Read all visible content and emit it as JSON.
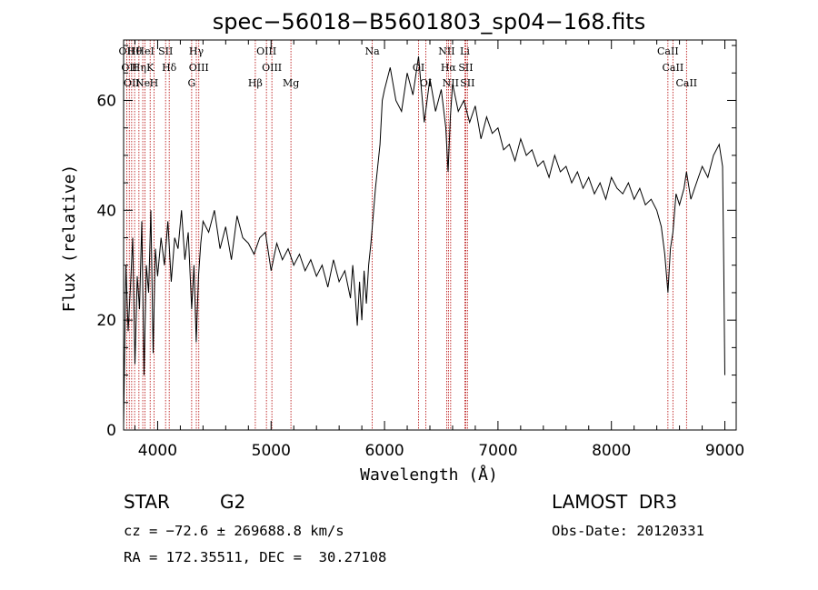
{
  "chart_data": {
    "type": "line",
    "title": "spec−56018−B5601803_sp04−168.fits",
    "xlabel": "Wavelength (Å)",
    "ylabel": "Flux (relative)",
    "xlim": [
      3700,
      9100
    ],
    "ylim": [
      0,
      71
    ],
    "xticks": [
      4000,
      5000,
      6000,
      7000,
      8000,
      9000
    ],
    "yticks": [
      0,
      20,
      40,
      60
    ],
    "series": [
      {
        "name": "spectrum",
        "x": [
          3700,
          3720,
          3740,
          3760,
          3780,
          3800,
          3820,
          3840,
          3860,
          3880,
          3900,
          3920,
          3940,
          3960,
          3980,
          4000,
          4030,
          4060,
          4090,
          4120,
          4150,
          4180,
          4210,
          4240,
          4270,
          4300,
          4320,
          4340,
          4360,
          4380,
          4400,
          4450,
          4500,
          4550,
          4600,
          4650,
          4700,
          4750,
          4800,
          4850,
          4900,
          4950,
          5000,
          5050,
          5100,
          5150,
          5200,
          5250,
          5300,
          5350,
          5400,
          5450,
          5500,
          5550,
          5600,
          5650,
          5700,
          5720,
          5740,
          5760,
          5780,
          5800,
          5820,
          5840,
          5860,
          5880,
          5900,
          5920,
          5940,
          5960,
          5980,
          6000,
          6050,
          6100,
          6150,
          6200,
          6250,
          6300,
          6350,
          6400,
          6450,
          6500,
          6540,
          6560,
          6580,
          6600,
          6650,
          6700,
          6750,
          6800,
          6850,
          6900,
          6950,
          7000,
          7050,
          7100,
          7150,
          7200,
          7250,
          7300,
          7350,
          7400,
          7450,
          7500,
          7550,
          7600,
          7650,
          7700,
          7750,
          7800,
          7850,
          7900,
          7950,
          8000,
          8050,
          8100,
          8150,
          8200,
          8250,
          8300,
          8350,
          8400,
          8440,
          8470,
          8498,
          8520,
          8542,
          8570,
          8600,
          8640,
          8662,
          8700,
          8750,
          8800,
          8850,
          8900,
          8950,
          8980,
          8990,
          9000
        ],
        "y": [
          1,
          30,
          18,
          26,
          35,
          12,
          28,
          22,
          38,
          10,
          30,
          25,
          40,
          14,
          33,
          28,
          35,
          30,
          38,
          27,
          35,
          33,
          40,
          31,
          36,
          22,
          30,
          16,
          28,
          34,
          38,
          36,
          40,
          33,
          37,
          31,
          39,
          35,
          34,
          32,
          35,
          36,
          29,
          34,
          31,
          33,
          30,
          32,
          29,
          31,
          28,
          30,
          26,
          31,
          27,
          29,
          24,
          30,
          25,
          19,
          27,
          20,
          29,
          23,
          30,
          34,
          39,
          44,
          48,
          52,
          60,
          62,
          66,
          60,
          58,
          65,
          61,
          68,
          56,
          64,
          58,
          62,
          55,
          47,
          57,
          63,
          58,
          60,
          56,
          59,
          53,
          57,
          54,
          55,
          51,
          52,
          49,
          53,
          50,
          51,
          48,
          49,
          46,
          50,
          47,
          48,
          45,
          47,
          44,
          46,
          43,
          45,
          42,
          46,
          44,
          43,
          45,
          42,
          44,
          41,
          42,
          40,
          37,
          32,
          25,
          33,
          36,
          43,
          41,
          44,
          47,
          42,
          45,
          48,
          46,
          50,
          52,
          48,
          30,
          10
        ]
      }
    ],
    "lines": [
      {
        "wl": 3727,
        "label": "OII"
      },
      {
        "wl": 3750,
        "label": "OII"
      },
      {
        "wl": 3771,
        "label": "OII"
      },
      {
        "wl": 3797,
        "label": "Hθ"
      },
      {
        "wl": 3835,
        "label": "Hη"
      },
      {
        "wl": 3869,
        "label": "Ne"
      },
      {
        "wl": 3889,
        "label": "HeI"
      },
      {
        "wl": 3934,
        "label": "K"
      },
      {
        "wl": 3968,
        "label": "H"
      },
      {
        "wl": 4070,
        "label": "SII"
      },
      {
        "wl": 4102,
        "label": "Hδ"
      },
      {
        "wl": 4300,
        "label": "G"
      },
      {
        "wl": 4341,
        "label": "Hγ"
      },
      {
        "wl": 4363,
        "label": "OIII"
      },
      {
        "wl": 4861,
        "label": "Hβ"
      },
      {
        "wl": 4959,
        "label": "OIII"
      },
      {
        "wl": 5007,
        "label": "OIII"
      },
      {
        "wl": 5175,
        "label": "Mg"
      },
      {
        "wl": 5892,
        "label": "Na"
      },
      {
        "wl": 6300,
        "label": "OI"
      },
      {
        "wl": 6364,
        "label": "OI"
      },
      {
        "wl": 6548,
        "label": "NII"
      },
      {
        "wl": 6563,
        "label": "Hα"
      },
      {
        "wl": 6583,
        "label": "NII"
      },
      {
        "wl": 6708,
        "label": "Li"
      },
      {
        "wl": 6716,
        "label": "SII"
      },
      {
        "wl": 6731,
        "label": "SII"
      },
      {
        "wl": 8498,
        "label": "CaII"
      },
      {
        "wl": 8542,
        "label": "CaII"
      },
      {
        "wl": 8662,
        "label": "CaII"
      }
    ],
    "colors": {
      "line": "#000000",
      "marker": "#b40000"
    }
  },
  "footer": {
    "object_class": "STAR",
    "subclass": "G2",
    "survey": "LAMOST  DR3",
    "cz": "cz = −72.6 ± 269688.8 km/s",
    "obs_date": "Obs-Date: 20120331",
    "coords": "RA = 172.35511, DEC =  30.27108"
  }
}
